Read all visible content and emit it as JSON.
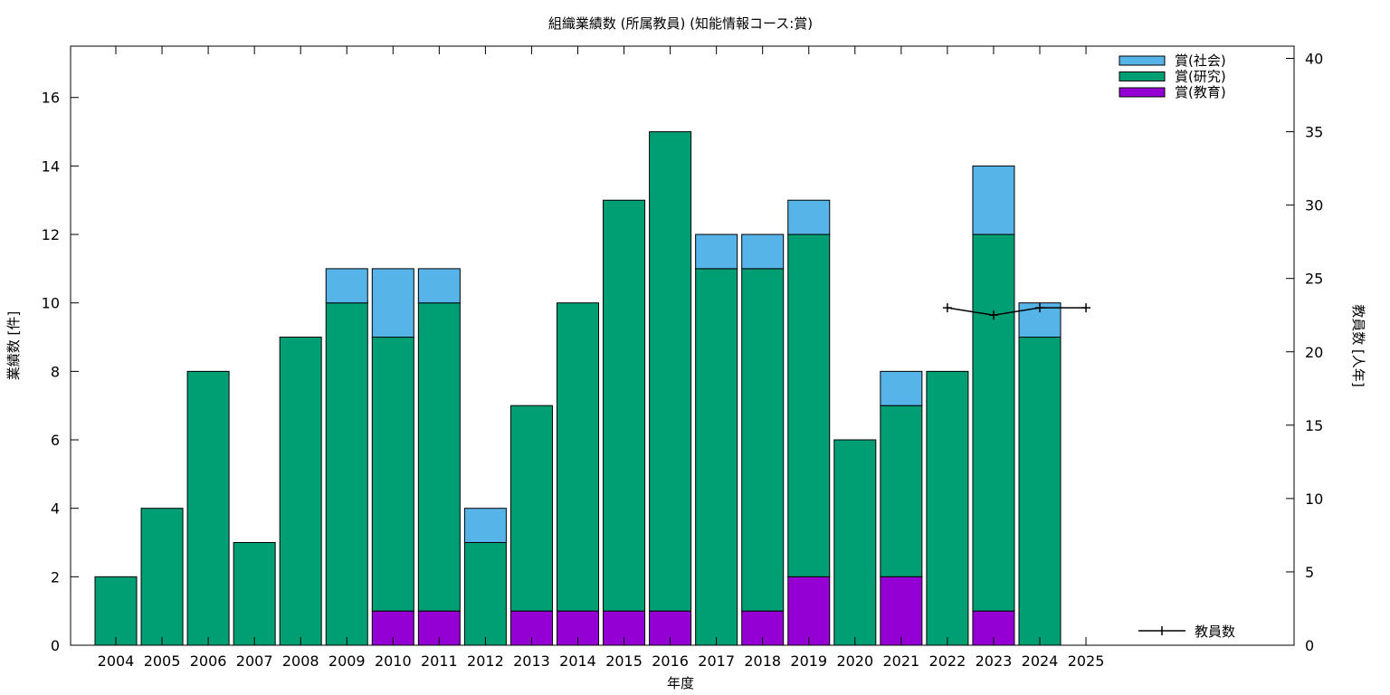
{
  "chart_data": {
    "type": "bar",
    "stacked": true,
    "title": "組織業績数 (所属教員) (知能情報コース:賞)",
    "xlabel": "年度",
    "ylabel": "業績数 [件]",
    "y2label": "教員数 [人年]",
    "ylim": [
      0,
      17.5
    ],
    "y2lim": [
      0,
      40.833
    ],
    "yticks": [
      0,
      2,
      4,
      6,
      8,
      10,
      12,
      14,
      16
    ],
    "y2ticks": [
      0,
      5,
      10,
      15,
      20,
      25,
      30,
      35,
      40
    ],
    "grid": false,
    "legend_position": "top-right",
    "categories": [
      "2004",
      "2005",
      "2006",
      "2007",
      "2008",
      "2009",
      "2010",
      "2011",
      "2012",
      "2013",
      "2014",
      "2015",
      "2016",
      "2017",
      "2018",
      "2019",
      "2020",
      "2021",
      "2022",
      "2023",
      "2024",
      "2025"
    ],
    "series": [
      {
        "name": "賞(教育)",
        "color": "#9400d3",
        "values": [
          0,
          0,
          0,
          0,
          0,
          0,
          1,
          1,
          0,
          1,
          1,
          1,
          1,
          0,
          1,
          2,
          0,
          2,
          0,
          1,
          0,
          0
        ]
      },
      {
        "name": "賞(研究)",
        "color": "#009e73",
        "values": [
          2,
          4,
          8,
          3,
          9,
          10,
          8,
          9,
          3,
          6,
          9,
          12,
          14,
          11,
          10,
          10,
          6,
          5,
          8,
          11,
          9,
          0
        ]
      },
      {
        "name": "賞(社会)",
        "color": "#56b4e9",
        "values": [
          0,
          0,
          0,
          0,
          0,
          1,
          2,
          1,
          1,
          0,
          0,
          0,
          0,
          1,
          1,
          1,
          0,
          1,
          0,
          2,
          1,
          0
        ]
      }
    ],
    "line_series": {
      "name": "教員数",
      "color": "#000000",
      "axis": "y2",
      "x": [
        "2022",
        "2023",
        "2024",
        "2025"
      ],
      "values": [
        23,
        22.5,
        23,
        23
      ]
    }
  }
}
